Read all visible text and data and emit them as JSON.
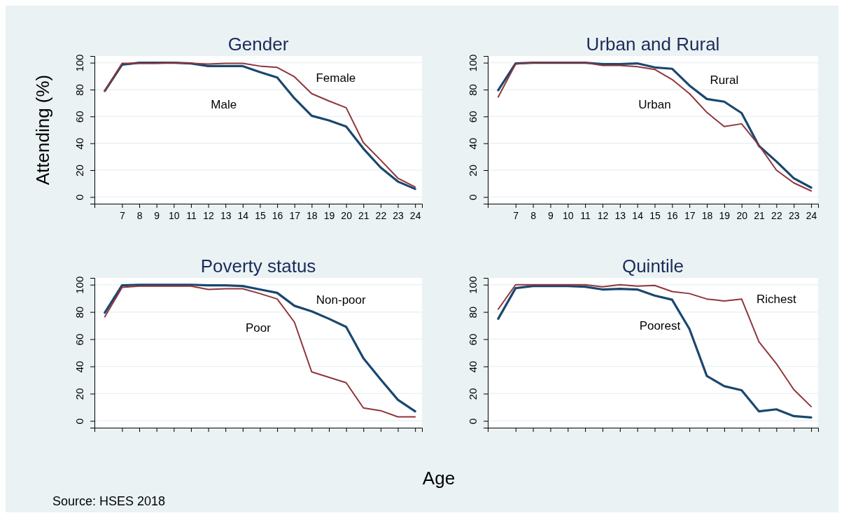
{
  "chart_data": [
    {
      "type": "line",
      "title": "Gender",
      "ylabel": "Attending (%)",
      "x": [
        6,
        7,
        8,
        9,
        10,
        11,
        12,
        13,
        14,
        15,
        16,
        17,
        18,
        19,
        20,
        21,
        22,
        23,
        24
      ],
      "xlim": [
        5.4,
        24.4
      ],
      "ylim": [
        -5,
        105
      ],
      "xticks": [
        7,
        8,
        9,
        10,
        11,
        12,
        13,
        14,
        15,
        16,
        17,
        18,
        19,
        20,
        21,
        22,
        23,
        24
      ],
      "yticks": [
        0,
        20,
        40,
        60,
        80,
        100
      ],
      "grid": "y",
      "series": [
        {
          "name": "Male",
          "color": "#1a476f",
          "values": [
            79,
            98.5,
            100,
            100,
            100,
            99.5,
            97.5,
            97.5,
            97.5,
            93,
            89,
            73.5,
            60.5,
            57,
            52.5,
            36,
            22,
            11.5,
            6
          ]
        },
        {
          "name": "Female",
          "color": "#90353b",
          "values": [
            79,
            99.5,
            99.5,
            99.5,
            100,
            99.5,
            99,
            99.5,
            99.5,
            97.5,
            96.5,
            89.5,
            77,
            71.5,
            66.5,
            40.5,
            27.5,
            14,
            7.5
          ]
        }
      ]
    },
    {
      "type": "line",
      "title": "Urban and Rural",
      "x": [
        6,
        7,
        8,
        9,
        10,
        11,
        12,
        13,
        14,
        15,
        16,
        17,
        18,
        19,
        20,
        21,
        22,
        23,
        24
      ],
      "xlim": [
        5.4,
        24.4
      ],
      "ylim": [
        -5,
        105
      ],
      "xticks": [
        7,
        8,
        9,
        10,
        11,
        12,
        13,
        14,
        15,
        16,
        17,
        18,
        19,
        20,
        21,
        22,
        23,
        24
      ],
      "yticks": [
        0,
        20,
        40,
        60,
        80,
        100
      ],
      "grid": "y",
      "series": [
        {
          "name": "Rural",
          "color": "#1a476f",
          "values": [
            79.5,
            99.5,
            100,
            100,
            100,
            100,
            99,
            99,
            99.5,
            96.5,
            95.5,
            83,
            73,
            71,
            62.5,
            38,
            26.5,
            14,
            7
          ]
        },
        {
          "name": "Urban",
          "color": "#90353b",
          "values": [
            74.5,
            99,
            100,
            100,
            100,
            100,
            98,
            98,
            97,
            95,
            87.5,
            77,
            63,
            52.5,
            54.5,
            38.5,
            20,
            10.5,
            4.5
          ]
        }
      ]
    },
    {
      "type": "line",
      "title": "Poverty status",
      "xlabel": "Age",
      "annotations": [
        "Source: HSES 2018"
      ],
      "x": [
        6,
        7,
        8,
        9,
        10,
        11,
        12,
        13,
        14,
        15,
        16,
        17,
        18,
        19,
        20,
        21,
        22,
        23,
        24
      ],
      "xlim": [
        5.4,
        24.4
      ],
      "ylim": [
        -5,
        105
      ],
      "xticks": [
        7,
        8,
        9,
        10,
        11,
        12,
        13,
        14,
        15,
        16,
        17,
        18,
        19,
        20,
        21,
        22,
        23,
        24
      ],
      "yticks": [
        0,
        20,
        40,
        60,
        80,
        100
      ],
      "grid": "y",
      "tick_labels": "y",
      "series": [
        {
          "name": "Non-poor",
          "color": "#1a476f",
          "values": [
            79.5,
            99.5,
            100,
            100,
            100,
            100,
            99.5,
            99.5,
            99,
            96.5,
            94,
            84.5,
            80.5,
            75,
            69,
            46,
            30.5,
            15.5,
            7
          ]
        },
        {
          "name": "Poor",
          "color": "#90353b",
          "values": [
            76.5,
            98,
            99,
            99,
            99,
            99,
            96.5,
            97,
            97,
            93.5,
            89.5,
            72.5,
            36,
            32,
            28,
            9.5,
            7.5,
            3,
            3
          ]
        }
      ]
    },
    {
      "type": "line",
      "title": "Quintile",
      "x": [
        6,
        7,
        8,
        9,
        10,
        11,
        12,
        13,
        14,
        15,
        16,
        17,
        18,
        19,
        20,
        21,
        22,
        23,
        24
      ],
      "xlim": [
        5.4,
        24.4
      ],
      "ylim": [
        -5,
        105
      ],
      "xticks": [
        7,
        8,
        9,
        10,
        11,
        12,
        13,
        14,
        15,
        16,
        17,
        18,
        19,
        20,
        21,
        22,
        23,
        24
      ],
      "yticks": [
        0,
        20,
        40,
        60,
        80,
        100
      ],
      "grid": "y",
      "tick_labels": "y",
      "series": [
        {
          "name": "Poorest",
          "color": "#1a476f",
          "values": [
            75,
            97.5,
            99,
            99,
            99,
            98.5,
            96.5,
            97,
            96.5,
            92,
            89,
            67.5,
            33,
            25.5,
            22.5,
            7,
            8.5,
            3.5,
            2.5
          ]
        },
        {
          "name": "Richest",
          "color": "#90353b",
          "values": [
            82,
            100,
            100,
            100,
            100,
            100,
            98.5,
            100,
            99,
            99.5,
            95,
            93.5,
            89.5,
            88,
            89.5,
            58,
            42,
            23,
            10.5
          ]
        }
      ]
    }
  ]
}
